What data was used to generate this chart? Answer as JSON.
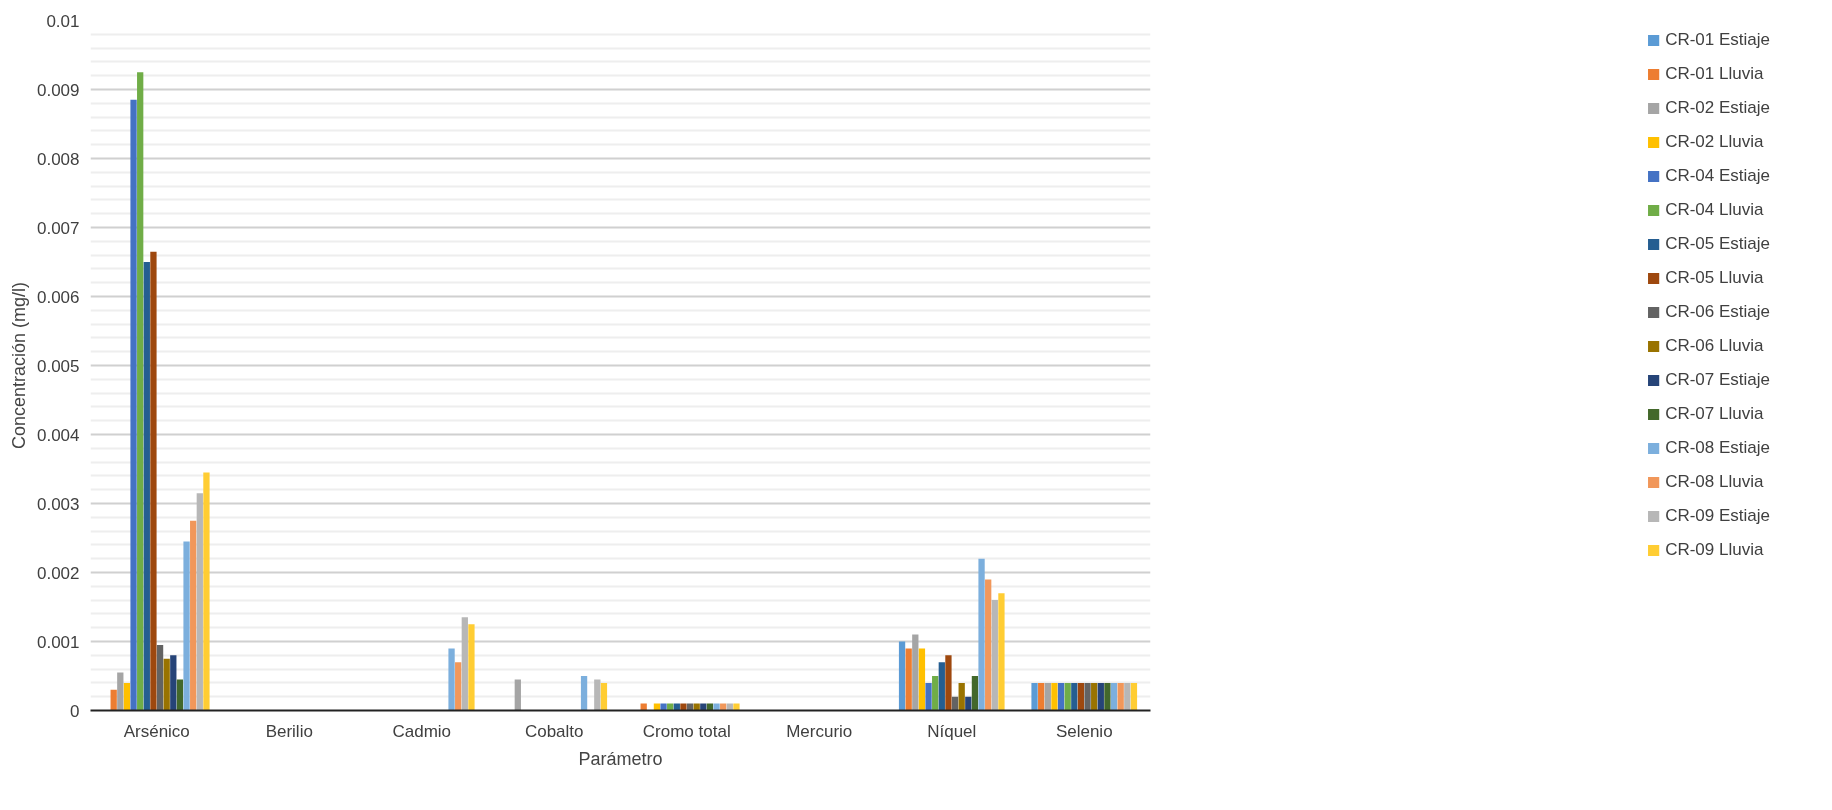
{
  "chart_data": {
    "type": "bar",
    "xlabel": "Parámetro",
    "ylabel": "Concentración (mg/l)",
    "categories": [
      "Arsénico",
      "Berilio",
      "Cadmio",
      "Cobalto",
      "Cromo total",
      "Mercurio",
      "Níquel",
      "Selenio"
    ],
    "ylim": [
      0,
      0.01
    ],
    "yticks": [
      0,
      0.001,
      0.002,
      0.003,
      0.004,
      0.005,
      0.006,
      0.007,
      0.008,
      0.009,
      0.01
    ],
    "grid": "y",
    "legend": "right",
    "series": [
      {
        "name": "CR-01 Estiaje",
        "color": "#5b9bd5",
        "values": [
          0,
          0,
          0,
          0,
          0,
          0,
          0.001,
          0.0004
        ]
      },
      {
        "name": "CR-01 Lluvia",
        "color": "#ed7d31",
        "values": [
          0.0003,
          0,
          0,
          0,
          0.0001,
          0,
          0.0009,
          0.0004
        ]
      },
      {
        "name": "CR-02 Estiaje",
        "color": "#a5a5a5",
        "values": [
          0.00055,
          0,
          0,
          0.00045,
          0,
          0,
          0.0011,
          0.0004
        ]
      },
      {
        "name": "CR-02 Lluvia",
        "color": "#ffc000",
        "values": [
          0.0004,
          0,
          0,
          0,
          0.0001,
          0,
          0.0009,
          0.0004
        ]
      },
      {
        "name": "CR-04 Estiaje",
        "color": "#4472c4",
        "values": [
          0.00885,
          0,
          0,
          0,
          0.0001,
          0,
          0.0004,
          0.0004
        ]
      },
      {
        "name": "CR-04 Lluvia",
        "color": "#70ad47",
        "values": [
          0.00925,
          0,
          0,
          0,
          0.0001,
          0,
          0.0005,
          0.0004
        ]
      },
      {
        "name": "CR-05 Estiaje",
        "color": "#255e91",
        "values": [
          0.0065,
          0,
          0,
          0,
          0.0001,
          0,
          0.0007,
          0.0004
        ]
      },
      {
        "name": "CR-05 Lluvia",
        "color": "#9e480e",
        "values": [
          0.00665,
          0,
          0,
          0,
          0.0001,
          0,
          0.0008,
          0.0004
        ]
      },
      {
        "name": "CR-06 Estiaje",
        "color": "#636363",
        "values": [
          0.00095,
          0,
          0,
          0,
          0.0001,
          0,
          0.0002,
          0.0004
        ]
      },
      {
        "name": "CR-06 Lluvia",
        "color": "#997300",
        "values": [
          0.00075,
          0,
          0,
          0,
          0.0001,
          0,
          0.0004,
          0.0004
        ]
      },
      {
        "name": "CR-07 Estiaje",
        "color": "#264478",
        "values": [
          0.0008,
          0,
          0,
          0,
          0.0001,
          0,
          0.0002,
          0.0004
        ]
      },
      {
        "name": "CR-07 Lluvia",
        "color": "#43682b",
        "values": [
          0.00045,
          0,
          0,
          0,
          0.0001,
          0,
          0.0005,
          0.0004
        ]
      },
      {
        "name": "CR-08 Estiaje",
        "color": "#7cafdd",
        "values": [
          0.00245,
          0,
          0.0009,
          0.0005,
          0.0001,
          0,
          0.0022,
          0.0004
        ]
      },
      {
        "name": "CR-08 Lluvia",
        "color": "#f1975a",
        "values": [
          0.00275,
          0,
          0.0007,
          0,
          0.0001,
          0,
          0.0019,
          0.0004
        ]
      },
      {
        "name": "CR-09 Estiaje",
        "color": "#b7b7b7",
        "values": [
          0.00315,
          0,
          0.00135,
          0.00045,
          0.0001,
          0,
          0.0016,
          0.0004
        ]
      },
      {
        "name": "CR-09 Lluvia",
        "color": "#ffcd33",
        "values": [
          0.00345,
          0,
          0.00125,
          0.0004,
          0.0001,
          0,
          0.0017,
          0.0004
        ]
      }
    ]
  }
}
